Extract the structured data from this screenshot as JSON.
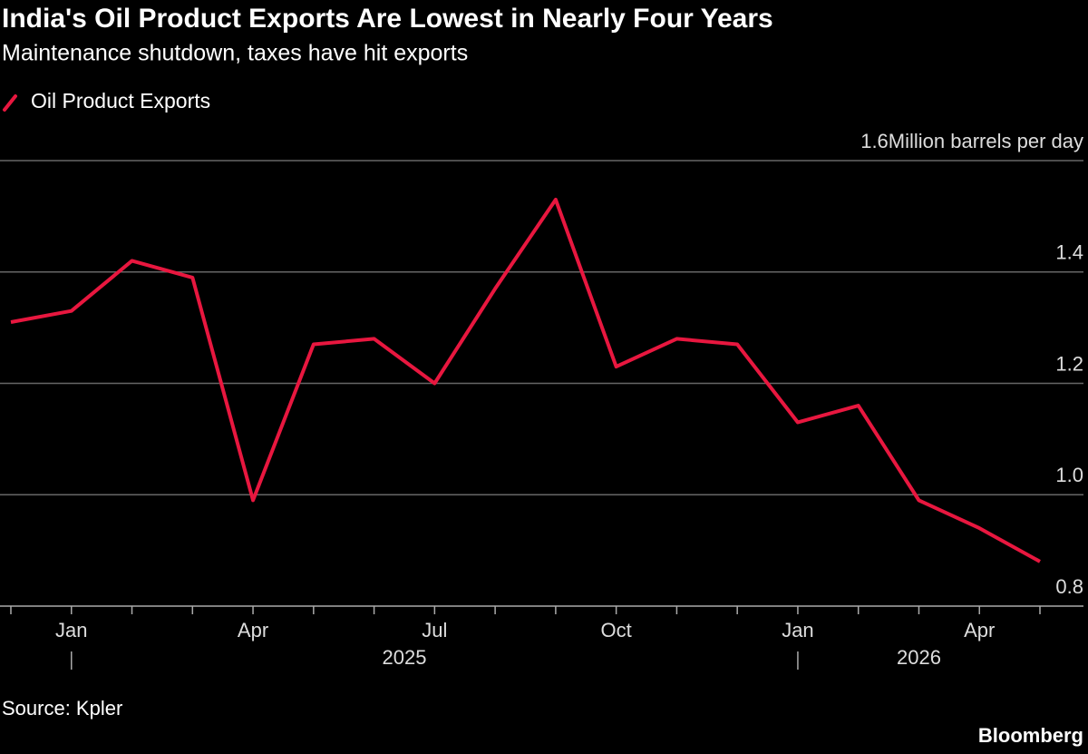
{
  "chart_data": {
    "type": "line",
    "title": "India's Oil Product Exports Are Lowest in Nearly Four Years",
    "subtitle": "Maintenance shutdown, taxes have hit exports",
    "y_unit": "Million barrels per day",
    "source": "Source: Kpler",
    "brand": "Bloomberg",
    "categories": [
      null,
      "Jan",
      null,
      null,
      "Apr",
      null,
      null,
      "Jul",
      null,
      null,
      "Oct",
      null,
      null,
      "Jan",
      null,
      null,
      "Apr",
      null
    ],
    "years": [
      {
        "label": "2025",
        "start": 1
      },
      {
        "label": "2026",
        "start": 13
      }
    ],
    "series": [
      {
        "name": "Oil Product Exports",
        "color": "#e8173f",
        "values": [
          1.31,
          1.33,
          1.42,
          1.39,
          0.99,
          1.27,
          1.28,
          1.2,
          1.37,
          1.53,
          1.23,
          1.28,
          1.27,
          1.13,
          1.16,
          0.99,
          0.94,
          0.88
        ]
      }
    ],
    "ylim": [
      0.8,
      1.6
    ],
    "yticks": [
      0.8,
      {
        "value": 1,
        "label": "1.0"
      },
      1.2,
      1.4,
      1.6
    ],
    "grid": true
  }
}
